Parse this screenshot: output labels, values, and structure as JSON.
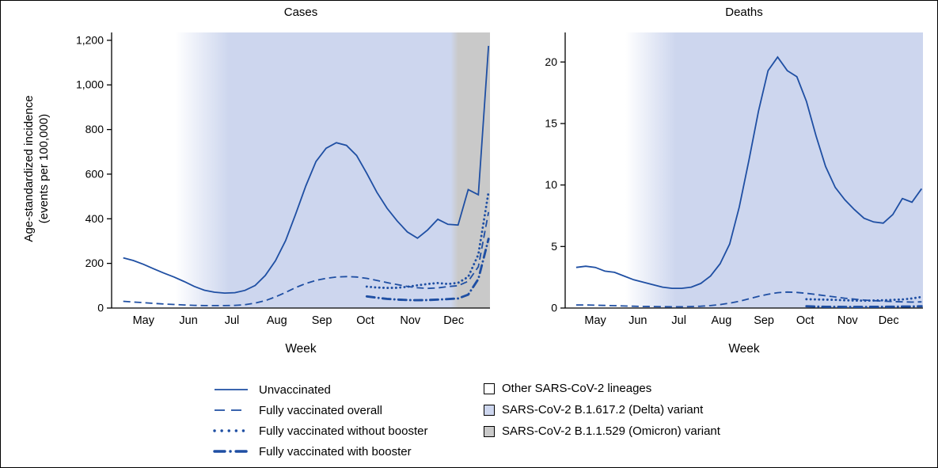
{
  "figure": {
    "y_axis_label_line1": "Age-standardized incidence",
    "y_axis_label_line2": "(events per 100,000)"
  },
  "colors": {
    "line": "#1f4fa3",
    "axis": "#000000",
    "text": "#000000",
    "delta_fill": "#cdd6ee",
    "omicron_fill": "#c9c9c9",
    "other_fill": "#ffffff"
  },
  "chart_data": [
    {
      "type": "line",
      "title": "Cases",
      "xlabel": "Week",
      "ylabel": "Age-standardized incidence (events per 100,000)",
      "x_note": "x values are day offsets of weekly data points; month tick positions use the same units",
      "x_domain": [
        -8,
        253
      ],
      "ylim": [
        0,
        1235
      ],
      "grid": false,
      "legend_position": "bottom",
      "yticks": [
        0,
        200,
        400,
        600,
        800,
        1000,
        1200
      ],
      "ytick_labels": [
        "0",
        "200",
        "400",
        "600",
        "800",
        "1,000",
        "1,200"
      ],
      "month_ticks": [
        {
          "label": "May",
          "day": 14
        },
        {
          "label": "Jun",
          "day": 45
        },
        {
          "label": "Jul",
          "day": 75
        },
        {
          "label": "Aug",
          "day": 106
        },
        {
          "label": "Sep",
          "day": 137
        },
        {
          "label": "Oct",
          "day": 167
        },
        {
          "label": "Nov",
          "day": 198
        },
        {
          "label": "Dec",
          "day": 228
        }
      ],
      "regions": [
        {
          "label": "Other SARS-CoV-2 lineages",
          "from": -8,
          "to": 36,
          "fill": "#ffffff",
          "fade_in": 0
        },
        {
          "label": "SARS-CoV-2 B.1.617.2 (Delta) variant",
          "from": 36,
          "to": 226,
          "fill": "#cdd6ee",
          "fade_in": 37
        },
        {
          "label": "SARS-CoV-2 B.1.1.529 (Omicron) variant",
          "from": 226,
          "to": 253,
          "fill": "#c9c9c9",
          "fade_in": 5
        }
      ],
      "series": [
        {
          "id": "unvaccinated",
          "label": "Unvaccinated",
          "style": "solid",
          "x": [
            0,
            7,
            14,
            21,
            28,
            35,
            42,
            49,
            56,
            63,
            70,
            77,
            84,
            91,
            98,
            105,
            112,
            119,
            126,
            133,
            140,
            147,
            154,
            161,
            168,
            175,
            182,
            189,
            196,
            203,
            210,
            217,
            224,
            231,
            238,
            245,
            252
          ],
          "y": [
            225,
            213,
            196,
            176,
            157,
            139,
            119,
            97,
            80,
            71,
            67,
            69,
            79,
            101,
            146,
            212,
            302,
            422,
            548,
            657,
            716,
            741,
            729,
            684,
            604,
            519,
            447,
            390,
            341,
            313,
            350,
            398,
            375,
            372,
            531,
            508,
            1175
          ]
        },
        {
          "id": "fully-vaccinated-overall",
          "label": "Fully vaccinated overall",
          "style": "dashed",
          "x": [
            0,
            7,
            14,
            21,
            28,
            35,
            42,
            49,
            56,
            63,
            70,
            77,
            84,
            91,
            98,
            105,
            112,
            119,
            126,
            133,
            140,
            147,
            154,
            161,
            168,
            175,
            182,
            189,
            196,
            203,
            210,
            217,
            224,
            231,
            238,
            245,
            252
          ],
          "y": [
            30,
            27,
            24,
            21,
            18,
            16,
            14,
            12,
            11,
            11,
            11,
            12,
            15,
            22,
            33,
            50,
            70,
            92,
            110,
            124,
            133,
            139,
            141,
            139,
            133,
            124,
            114,
            105,
            97,
            91,
            88,
            90,
            96,
            100,
            120,
            185,
            430
          ]
        },
        {
          "id": "fully-vaccinated-without-booster",
          "label": "Fully vaccinated without booster",
          "style": "dotted",
          "x": [
            168,
            175,
            182,
            189,
            196,
            203,
            210,
            217,
            224,
            231,
            238,
            245,
            252
          ],
          "y": [
            96,
            92,
            90,
            91,
            95,
            102,
            108,
            112,
            108,
            113,
            140,
            240,
            520
          ]
        },
        {
          "id": "fully-vaccinated-with-booster",
          "label": "Fully vaccinated with booster",
          "style": "dashdot",
          "x": [
            168,
            175,
            182,
            189,
            196,
            203,
            210,
            217,
            224,
            231,
            238,
            245,
            252
          ],
          "y": [
            52,
            46,
            41,
            38,
            36,
            35,
            36,
            38,
            40,
            43,
            60,
            130,
            310
          ]
        }
      ]
    },
    {
      "type": "line",
      "title": "Deaths",
      "xlabel": "Week",
      "x_domain": [
        -8,
        253
      ],
      "ylim": [
        0,
        22.4
      ],
      "grid": false,
      "legend_position": "bottom",
      "yticks": [
        0,
        5,
        10,
        15,
        20
      ],
      "ytick_labels": [
        "0",
        "5",
        "10",
        "15",
        "20"
      ],
      "month_ticks": [
        {
          "label": "May",
          "day": 14
        },
        {
          "label": "Jun",
          "day": 45
        },
        {
          "label": "Jul",
          "day": 75
        },
        {
          "label": "Aug",
          "day": 106
        },
        {
          "label": "Sep",
          "day": 137
        },
        {
          "label": "Oct",
          "day": 167
        },
        {
          "label": "Nov",
          "day": 198
        },
        {
          "label": "Dec",
          "day": 228
        }
      ],
      "regions": [
        {
          "label": "Other SARS-CoV-2 lineages",
          "from": -8,
          "to": 36,
          "fill": "#ffffff",
          "fade_in": 0
        },
        {
          "label": "SARS-CoV-2 B.1.617.2 (Delta) variant",
          "from": 36,
          "to": 253,
          "fill": "#cdd6ee",
          "fade_in": 37
        }
      ],
      "series": [
        {
          "id": "unvaccinated",
          "label": "Unvaccinated",
          "style": "solid",
          "x": [
            0,
            7,
            14,
            21,
            28,
            35,
            42,
            49,
            56,
            63,
            70,
            77,
            84,
            91,
            98,
            105,
            112,
            119,
            126,
            133,
            140,
            147,
            154,
            161,
            168,
            175,
            182,
            189,
            196,
            203,
            210,
            217,
            224,
            231,
            238,
            245,
            252
          ],
          "y": [
            3.3,
            3.4,
            3.3,
            3.0,
            2.9,
            2.6,
            2.3,
            2.1,
            1.9,
            1.7,
            1.6,
            1.6,
            1.7,
            2.0,
            2.6,
            3.6,
            5.2,
            8.2,
            12.0,
            16.0,
            19.3,
            20.4,
            19.3,
            18.8,
            16.8,
            14.0,
            11.5,
            9.8,
            8.8,
            8.0,
            7.3,
            7.0,
            6.9,
            7.6,
            8.9,
            8.6,
            9.7
          ]
        },
        {
          "id": "fully-vaccinated-overall",
          "label": "Fully vaccinated overall",
          "style": "dashed",
          "x": [
            0,
            7,
            14,
            21,
            28,
            35,
            42,
            49,
            56,
            63,
            70,
            77,
            84,
            91,
            98,
            105,
            112,
            119,
            126,
            133,
            140,
            147,
            154,
            161,
            168,
            175,
            182,
            189,
            196,
            203,
            210,
            217,
            224,
            231,
            238,
            245,
            252
          ],
          "y": [
            0.25,
            0.25,
            0.23,
            0.21,
            0.19,
            0.17,
            0.15,
            0.13,
            0.12,
            0.11,
            0.1,
            0.1,
            0.12,
            0.15,
            0.2,
            0.28,
            0.4,
            0.55,
            0.75,
            0.95,
            1.12,
            1.25,
            1.3,
            1.27,
            1.2,
            1.1,
            1.0,
            0.9,
            0.8,
            0.72,
            0.65,
            0.6,
            0.56,
            0.53,
            0.5,
            0.48,
            0.5
          ]
        },
        {
          "id": "fully-vaccinated-without-booster",
          "label": "Fully vaccinated without booster",
          "style": "dotted",
          "x": [
            168,
            175,
            182,
            189,
            196,
            203,
            210,
            217,
            224,
            231,
            238,
            245,
            252
          ],
          "y": [
            0.72,
            0.7,
            0.68,
            0.66,
            0.63,
            0.61,
            0.6,
            0.61,
            0.63,
            0.66,
            0.7,
            0.78,
            0.9
          ]
        },
        {
          "id": "fully-vaccinated-with-booster",
          "label": "Fully vaccinated with booster",
          "style": "dashdot",
          "x": [
            168,
            175,
            182,
            189,
            196,
            203,
            210,
            217,
            224,
            231,
            238,
            245,
            252
          ],
          "y": [
            0.15,
            0.12,
            0.1,
            0.1,
            0.09,
            0.09,
            0.09,
            0.1,
            0.1,
            0.11,
            0.12,
            0.13,
            0.15
          ]
        }
      ]
    }
  ]
}
